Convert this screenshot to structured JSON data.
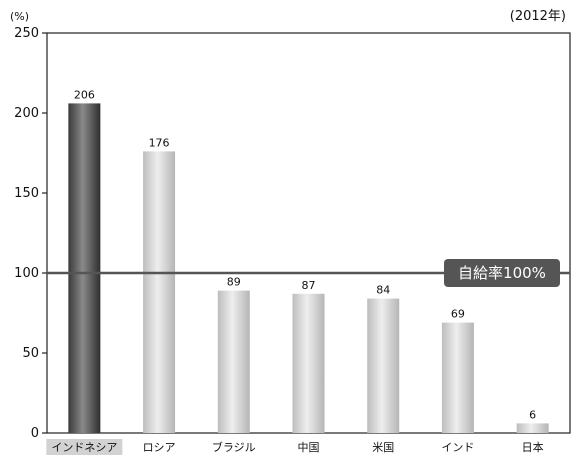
{
  "chart_data": {
    "type": "bar",
    "unit": "(%)",
    "note": "(2012年)",
    "categories": [
      "インドネシア",
      "ロシア",
      "ブラジル",
      "中国",
      "米国",
      "インド",
      "日本"
    ],
    "values": [
      206,
      176,
      89,
      87,
      84,
      69,
      6
    ],
    "highlight_index": 0,
    "ylim": [
      0,
      250
    ],
    "yticks": [
      0,
      50,
      100,
      150,
      200,
      250
    ],
    "grid": false,
    "reference_line": {
      "value": 100,
      "label": "自給率100%"
    },
    "colors": {
      "highlight_bar": "#5a5a5a",
      "bar": "#cfcfcf",
      "reference_line": "#555555",
      "reference_label_bg": "#555555",
      "highlight_category_bg": "#d2d2d2"
    }
  }
}
